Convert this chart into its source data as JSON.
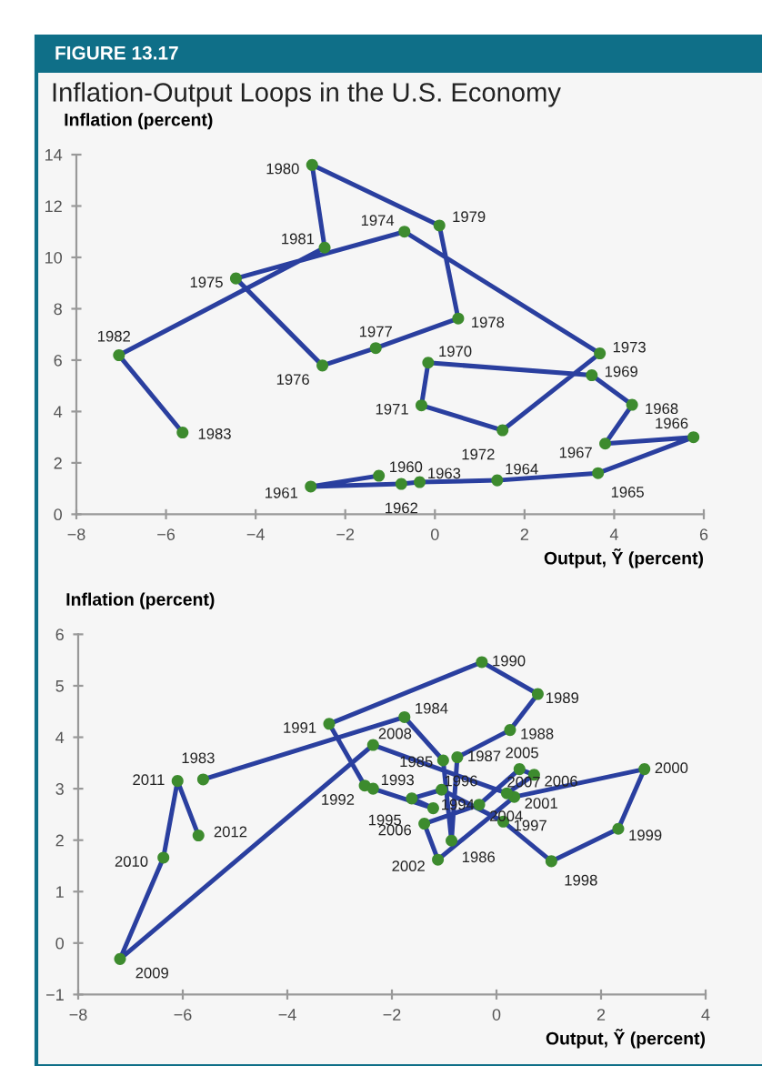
{
  "chart_data": [
    {
      "type": "line",
      "title": "Inflation-Output Loops in the U.S. Economy",
      "ylabel": "Inflation (percent)",
      "xlabel": "Output, Ỹ (percent)",
      "annotations": [
        "FIGURE 13.17",
        {
          "text": "1960",
          "x": -1.25,
          "y": 1.5
        },
        {
          "text": "1961",
          "x": -2.77,
          "y": 1.08
        },
        {
          "text": "1962",
          "x": -0.75,
          "y": 1.18
        },
        {
          "text": "1963",
          "x": -0.34,
          "y": 1.25
        },
        {
          "text": "1964",
          "x": 1.39,
          "y": 1.32
        },
        {
          "text": "1965",
          "x": 3.64,
          "y": 1.6
        },
        {
          "text": "1966",
          "x": 5.77,
          "y": 3.0
        },
        {
          "text": "1967",
          "x": 3.8,
          "y": 2.75
        },
        {
          "text": "1968",
          "x": 4.4,
          "y": 4.26
        },
        {
          "text": "1969",
          "x": 3.5,
          "y": 5.41
        },
        {
          "text": "1970",
          "x": -0.15,
          "y": 5.9
        },
        {
          "text": "1971",
          "x": -0.3,
          "y": 4.24
        },
        {
          "text": "1972",
          "x": 1.51,
          "y": 3.27
        },
        {
          "text": "1973",
          "x": 3.68,
          "y": 6.26
        },
        {
          "text": "1974",
          "x": -0.68,
          "y": 11.0
        },
        {
          "text": "1975",
          "x": -4.44,
          "y": 9.18
        },
        {
          "text": "1976",
          "x": -2.51,
          "y": 5.79
        },
        {
          "text": "1977",
          "x": -1.32,
          "y": 6.47
        },
        {
          "text": "1978",
          "x": 0.52,
          "y": 7.62
        },
        {
          "text": "1979",
          "x": 0.1,
          "y": 11.24
        },
        {
          "text": "1980",
          "x": -2.74,
          "y": 13.6
        },
        {
          "text": "1981",
          "x": -2.46,
          "y": 10.38
        },
        {
          "text": "1982",
          "x": -7.05,
          "y": 6.19
        },
        {
          "text": "1983",
          "x": -5.63,
          "y": 3.18
        }
      ],
      "series": [
        {
          "color": "#2a3f9f",
          "colors": [
            "#3d8b2e",
            "#3d8b2e",
            "#3d8b2e",
            "#3d8b2e",
            "#3d8b2e",
            "#3d8b2e",
            "#3d8b2e",
            "#3d8b2e",
            "#3d8b2e",
            "#3d8b2e",
            "#3d8b2e",
            "#3d8b2e",
            "#3d8b2e",
            "#3d8b2e",
            "#3d8b2e",
            "#3d8b2e",
            "#3d8b2e",
            "#3d8b2e",
            "#3d8b2e",
            "#3d8b2e",
            "#3d8b2e",
            "#3d8b2e",
            "#3d8b2e",
            "#3d8b2e"
          ],
          "x": [
            -1.25,
            -2.77,
            -0.75,
            -0.34,
            1.39,
            3.64,
            5.77,
            3.8,
            4.4,
            3.5,
            -0.15,
            -0.3,
            1.51,
            3.68,
            -0.68,
            -4.44,
            -2.51,
            -1.32,
            0.52,
            0.1,
            -2.74,
            -2.46,
            -7.05,
            -5.63
          ],
          "values": [
            1.5,
            1.08,
            1.18,
            1.25,
            1.32,
            1.6,
            3.0,
            2.75,
            4.26,
            5.41,
            5.9,
            4.24,
            3.27,
            6.26,
            11.0,
            9.18,
            5.79,
            6.47,
            7.62,
            11.24,
            13.6,
            10.38,
            6.19,
            3.18
          ]
        }
      ],
      "xlim": [
        -8,
        6
      ],
      "xticks": [
        {
          "value": -8,
          "label": "−8"
        },
        {
          "value": -6,
          "label": "−6"
        },
        {
          "value": -4,
          "label": "−4"
        },
        {
          "value": -2,
          "label": "−2"
        },
        0,
        2,
        4,
        6
      ],
      "ylim": [
        0,
        14
      ],
      "yticks": [
        0,
        2,
        4,
        6,
        8,
        10,
        12,
        14
      ],
      "marker": "circle",
      "line_style": "solid"
    },
    {
      "type": "line",
      "ylabel": "Inflation (percent)",
      "xlabel": "Output, Ỹ (percent)",
      "annotations": [
        {
          "text": "1983",
          "x": -5.61,
          "y": 3.18
        },
        {
          "text": "1984",
          "x": -1.76,
          "y": 4.39
        },
        {
          "text": "1985",
          "x": -1.02,
          "y": 3.55
        },
        {
          "text": "1986",
          "x": -0.86,
          "y": 1.99
        },
        {
          "text": "1987",
          "x": -0.75,
          "y": 3.61
        },
        {
          "text": "1988",
          "x": 0.26,
          "y": 4.14
        },
        {
          "text": "1989",
          "x": 0.79,
          "y": 4.84
        },
        {
          "text": "1990",
          "x": -0.28,
          "y": 5.46
        },
        {
          "text": "1991",
          "x": -3.2,
          "y": 4.26
        },
        {
          "text": "1992",
          "x": -2.52,
          "y": 3.06
        },
        {
          "text": "1993",
          "x": -2.36,
          "y": 3.0
        },
        {
          "text": "1994",
          "x": -1.21,
          "y": 2.62
        },
        {
          "text": "1995",
          "x": -1.62,
          "y": 2.81
        },
        {
          "text": "1996",
          "x": -1.05,
          "y": 2.98
        },
        {
          "text": "1997",
          "x": 0.13,
          "y": 2.36
        },
        {
          "text": "1998",
          "x": 1.05,
          "y": 1.59
        },
        {
          "text": "1999",
          "x": 2.33,
          "y": 2.22
        },
        {
          "text": "2000",
          "x": 2.83,
          "y": 3.38
        },
        {
          "text": "2001",
          "x": 0.34,
          "y": 2.84
        },
        {
          "text": "2002",
          "x": -1.12,
          "y": 1.62
        },
        {
          "text": "2006",
          "x": -1.38,
          "y": 2.32
        },
        {
          "text": "2004",
          "x": -0.33,
          "y": 2.69
        },
        {
          "text": "2005",
          "x": 0.44,
          "y": 3.38
        },
        {
          "text": "2006",
          "x": 0.72,
          "y": 3.27
        },
        {
          "text": "2007",
          "x": 0.2,
          "y": 2.91
        },
        {
          "text": "2008",
          "x": -2.36,
          "y": 3.85
        },
        {
          "text": "2009",
          "x": -7.2,
          "y": -0.31
        },
        {
          "text": "2010",
          "x": -6.37,
          "y": 1.66
        },
        {
          "text": "2011",
          "x": -6.1,
          "y": 3.15
        },
        {
          "text": "2012",
          "x": -5.7,
          "y": 2.09
        }
      ],
      "series": [
        {
          "color": "#2a3f9f",
          "colors": [
            "#3d8b2e",
            "#3d8b2e",
            "#3d8b2e",
            "#3d8b2e",
            "#3d8b2e",
            "#3d8b2e",
            "#3d8b2e",
            "#3d8b2e",
            "#3d8b2e",
            "#3d8b2e",
            "#3d8b2e",
            "#3d8b2e",
            "#3d8b2e",
            "#3d8b2e",
            "#3d8b2e",
            "#3d8b2e",
            "#3d8b2e",
            "#3d8b2e",
            "#3d8b2e",
            "#3d8b2e",
            "#3d8b2e",
            "#3d8b2e",
            "#3d8b2e",
            "#3d8b2e",
            "#3d8b2e",
            "#3d8b2e",
            "#3d8b2e",
            "#3d8b2e",
            "#3d8b2e",
            "#3d8b2e"
          ],
          "x": [
            -5.61,
            -1.76,
            -1.02,
            -0.86,
            -0.75,
            0.26,
            0.79,
            -0.28,
            -3.2,
            -2.52,
            -2.36,
            -1.21,
            -1.62,
            -1.05,
            0.13,
            1.05,
            2.33,
            2.83,
            0.34,
            -1.12,
            -1.38,
            -0.33,
            0.44,
            0.72,
            0.2,
            -2.36,
            -7.2,
            -6.37,
            -6.1,
            -5.7
          ],
          "values": [
            3.18,
            4.39,
            3.55,
            1.99,
            3.61,
            4.14,
            4.84,
            5.46,
            4.26,
            3.06,
            3.0,
            2.62,
            2.81,
            2.98,
            2.36,
            1.59,
            2.22,
            3.38,
            2.84,
            1.62,
            2.32,
            2.69,
            3.38,
            3.27,
            2.91,
            3.85,
            -0.31,
            1.66,
            3.15,
            2.09
          ]
        }
      ],
      "xlim": [
        -8,
        4
      ],
      "xticks": [
        {
          "value": -8,
          "label": "−8"
        },
        {
          "value": -6,
          "label": "−6"
        },
        {
          "value": -4,
          "label": "−4"
        },
        {
          "value": -2,
          "label": "−2"
        },
        0,
        2,
        4
      ],
      "ylim": [
        -1,
        6
      ],
      "yticks": [
        {
          "value": -1,
          "label": "−1"
        },
        0,
        1,
        2,
        3,
        4,
        5,
        6
      ],
      "marker": "circle",
      "line_style": "solid"
    }
  ]
}
